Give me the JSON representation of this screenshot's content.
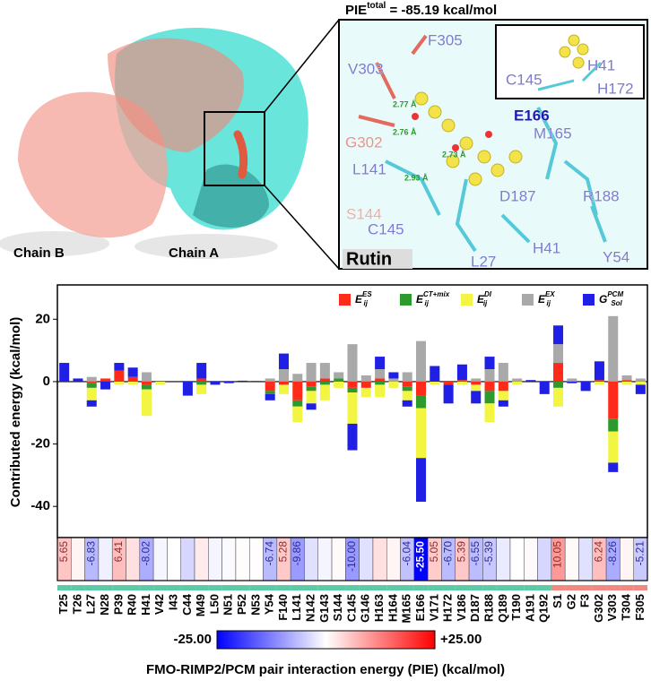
{
  "structure": {
    "pie_total": {
      "text": "PIE",
      "superscript": "total",
      "rest": " = -85.19 kcal/mol"
    },
    "ligand": "Rutin",
    "chains": [
      "Chain B",
      "Chain A"
    ],
    "residues": [
      "F305",
      "V303",
      "G302",
      "E166",
      "M165",
      "L141",
      "S144",
      "C145",
      "D187",
      "R188",
      "H41",
      "Y54",
      "L27"
    ],
    "inset_residues": [
      "C145",
      "H41",
      "H172"
    ],
    "distances": [
      "2.77 Å",
      "2.76 Å",
      "2.73 Å",
      "2.93 Å"
    ]
  },
  "chart_data": {
    "type": "stacked_bar",
    "ylabel": "Contributed energy (kcal/mol)",
    "xlabel": "FMO-RIMP2/PCM pair interaction energy (PIE) (kcal/mol)",
    "categories": [
      "T25",
      "T26",
      "L27",
      "N28",
      "P39",
      "R40",
      "H41",
      "V42",
      "I43",
      "C44",
      "M49",
      "L50",
      "N51",
      "P52",
      "N53",
      "Y54",
      "F140",
      "L141",
      "N142",
      "G143",
      "S144",
      "C145",
      "G146",
      "H163",
      "H164",
      "M165",
      "E166",
      "V171",
      "H172",
      "V186",
      "D187",
      "R188",
      "Q189",
      "T190",
      "A191",
      "Q192",
      "S1",
      "G2",
      "F3",
      "G302",
      "V303",
      "T304",
      "F305"
    ],
    "groups": [
      "A",
      "A",
      "A",
      "A",
      "A",
      "A",
      "A",
      "A",
      "A",
      "A",
      "A",
      "A",
      "A",
      "A",
      "A",
      "A",
      "A",
      "A",
      "A",
      "A",
      "A",
      "A",
      "A",
      "A",
      "A",
      "A",
      "A",
      "A",
      "A",
      "A",
      "A",
      "A",
      "A",
      "A",
      "A",
      "A",
      "B",
      "B",
      "B",
      "B",
      "B",
      "B",
      "B"
    ],
    "group_colors": {
      "A": "#5cc9a7",
      "B": "#f08a80"
    },
    "ylim": [
      -50,
      31
    ],
    "yticks": [
      -40,
      -20,
      0,
      20
    ],
    "series": [
      {
        "name": "E",
        "subscript": "ij",
        "superscript": "ES",
        "color": "#ff2a1a",
        "values": [
          0,
          0,
          -0.5,
          1,
          3.5,
          1.5,
          -1,
          0,
          0,
          0,
          1,
          0,
          0,
          0,
          0,
          -3,
          -1,
          -6,
          -1.5,
          1,
          0,
          -2,
          -2,
          1,
          0,
          -1.5,
          -4.5,
          0,
          -1,
          0.5,
          -1,
          -3,
          -3,
          0,
          0,
          0,
          6,
          0,
          0,
          0.5,
          -12,
          0.5,
          0
        ]
      },
      {
        "name": "E",
        "subscript": "ij",
        "superscript": "CT+mix",
        "color": "#2e9a2e",
        "values": [
          0,
          0,
          -1.5,
          0,
          0,
          0,
          -1.5,
          0,
          0,
          0,
          -1,
          0,
          0,
          0,
          0,
          -1,
          0,
          -2,
          -1.5,
          -1,
          1,
          -1.5,
          0,
          -1,
          0,
          -1.5,
          -4,
          0,
          0,
          0,
          0,
          -4,
          0,
          0,
          0,
          0,
          -2,
          0,
          0,
          0,
          -4,
          0,
          0
        ]
      },
      {
        "name": "E",
        "subscript": "ij",
        "superscript": "DI",
        "color": "#f2f542",
        "values": [
          0,
          0,
          -4,
          0,
          -1,
          -1,
          -8.5,
          -1,
          0,
          0,
          -3,
          0,
          0,
          0,
          0,
          0,
          -3,
          -5,
          -4,
          -5,
          -2,
          -10,
          -3,
          -4,
          -2,
          -3,
          -16,
          -1,
          0,
          -1,
          -2,
          -6,
          -3,
          -1,
          0,
          0,
          -6,
          0,
          0,
          -1,
          -10,
          -1,
          -1
        ]
      },
      {
        "name": "E",
        "subscript": "ij",
        "superscript": "EX",
        "color": "#a9a9a9",
        "values": [
          0,
          0,
          1.5,
          0,
          0,
          0,
          3,
          0,
          0,
          0,
          0,
          0,
          0,
          0,
          0,
          1,
          4,
          2.5,
          6,
          5,
          2,
          12,
          2,
          3,
          1,
          3,
          13,
          0,
          0,
          0,
          1,
          4,
          6,
          1,
          0,
          0,
          6,
          1,
          0,
          0,
          21,
          1.5,
          1
        ]
      },
      {
        "name": "G",
        "subscript": "Sol",
        "superscript": "PCM",
        "color": "#1f1fe6",
        "values": [
          6,
          1,
          -2,
          -2.5,
          2.5,
          3,
          0,
          0,
          0,
          -4.5,
          5,
          -1,
          -0.5,
          0.3,
          0.2,
          -2,
          5,
          0,
          -2,
          0,
          0,
          -8.5,
          0,
          4,
          2,
          -2,
          -14,
          5,
          -6,
          5,
          -4,
          4,
          -2,
          0,
          0.5,
          -4,
          6,
          -0.5,
          -3,
          6,
          -3,
          0,
          -3
        ]
      }
    ],
    "pie_values": [
      5.65,
      1,
      -6.83,
      -1.5,
      6.41,
      3,
      -8.02,
      -1,
      0,
      -4,
      2,
      -1,
      -0.5,
      0.3,
      0.2,
      -6.74,
      5.28,
      -9.86,
      -3,
      -1,
      0.5,
      -10.0,
      -3,
      3,
      1,
      -6.04,
      -25.5,
      5.05,
      -6.7,
      5.39,
      -6.55,
      -5.39,
      -2,
      0,
      0.5,
      -4,
      10.05,
      0.5,
      -3,
      6.24,
      -8.26,
      1,
      -5.21
    ],
    "pie_labels": [
      "5.65",
      null,
      "-6.83",
      null,
      "6.41",
      null,
      "-8.02",
      null,
      null,
      null,
      null,
      null,
      null,
      null,
      null,
      "-6.74",
      "5.28",
      "-9.86",
      null,
      null,
      null,
      "-10.00",
      null,
      null,
      null,
      "-6.04",
      "-25.50",
      "5.05",
      "-6.70",
      "5.39",
      "-6.55",
      "-5.39",
      null,
      null,
      null,
      null,
      "10.05",
      null,
      null,
      "6.24",
      "-8.26",
      null,
      "-5.21"
    ],
    "colorbar": {
      "colors": [
        "#0000ff",
        "#ffffff",
        "#ff0000"
      ],
      "min": {
        "value": -25,
        "label": "-25.00"
      },
      "max": {
        "value": 25,
        "label": "+25.00"
      }
    }
  }
}
